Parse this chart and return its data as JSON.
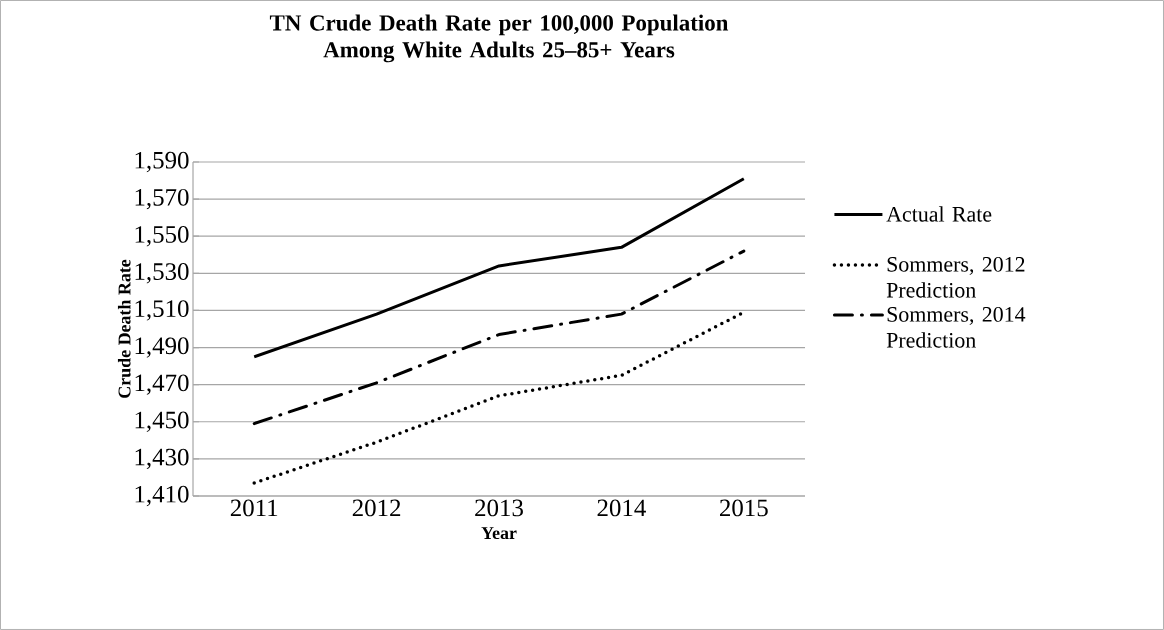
{
  "chart_data": {
    "type": "line",
    "title": "TN Crude Death Rate per 100,000 Population Among White Adults 25–85+ Years",
    "xlabel": "Year",
    "ylabel": "Crude Death Rate",
    "categories": [
      "2011",
      "2012",
      "2013",
      "2014",
      "2015"
    ],
    "series": [
      {
        "name": "Actual Rate",
        "color": "#000000",
        "line_style": "solid",
        "values": [
          1485,
          1508,
          1534,
          1544,
          1581
        ]
      },
      {
        "name": "Sommers, 2012 Prediction",
        "color": "#000000",
        "line_style": "dotted",
        "values": [
          1417,
          1439,
          1464,
          1475,
          1509
        ]
      },
      {
        "name": "Sommers, 2014 Prediction",
        "color": "#000000",
        "line_style": "dashdot",
        "values": [
          1449,
          1471,
          1497,
          1508,
          1542
        ]
      }
    ],
    "ylim": [
      1410,
      1590
    ],
    "yticks": [
      {
        "value": 1410,
        "label": "1,410"
      },
      {
        "value": 1430,
        "label": "1,430"
      },
      {
        "value": 1450,
        "label": "1,450"
      },
      {
        "value": 1470,
        "label": "1,470"
      },
      {
        "value": 1490,
        "label": "1,490"
      },
      {
        "value": 1510,
        "label": "1,510"
      },
      {
        "value": 1530,
        "label": "1,530"
      },
      {
        "value": 1550,
        "label": "1,550"
      },
      {
        "value": 1570,
        "label": "1,570"
      },
      {
        "value": 1590,
        "label": "1,590"
      }
    ],
    "grid": "y",
    "legend": "right",
    "marker": "none"
  }
}
